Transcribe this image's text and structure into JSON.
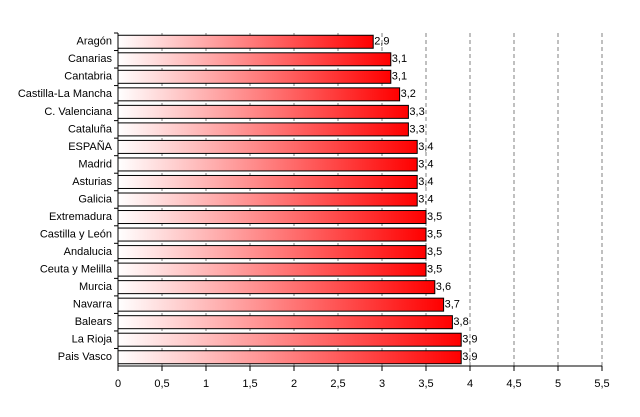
{
  "chart_data": {
    "type": "bar",
    "orientation": "horizontal",
    "categories": [
      "Aragón",
      "Canarias",
      "Cantabria",
      "Castilla-La Mancha",
      "C. Valenciana",
      "Cataluña",
      "ESPAÑA",
      "Madrid",
      "Asturias",
      "Galicia",
      "Extremadura",
      "Castilla y León",
      "Andalucia",
      "Ceuta y Melilla",
      "Murcia",
      "Navarra",
      "Balears",
      "La Rioja",
      "Pais Vasco"
    ],
    "values": [
      2.9,
      3.1,
      3.1,
      3.2,
      3.3,
      3.3,
      3.4,
      3.4,
      3.4,
      3.4,
      3.5,
      3.5,
      3.5,
      3.5,
      3.6,
      3.7,
      3.8,
      3.9,
      3.9
    ],
    "value_labels": [
      "2,9",
      "3,1",
      "3,1",
      "3,2",
      "3,3",
      "3,3",
      "3,4",
      "3,4",
      "3,4",
      "3,4",
      "3,5",
      "3,5",
      "3,5",
      "3,5",
      "3,6",
      "3,7",
      "3,8",
      "3,9",
      "3,9"
    ],
    "color": "#ff0000",
    "xlim": [
      0,
      5.5
    ],
    "xticks": [
      0,
      {
        "value": 0.5,
        "label": "0,5"
      },
      1,
      {
        "value": 1.5,
        "label": "1,5"
      },
      2,
      {
        "value": 2.5,
        "label": "2,5"
      },
      3,
      {
        "value": 3.5,
        "label": "3,5"
      },
      4,
      {
        "value": 4.5,
        "label": "4,5"
      },
      5,
      {
        "value": 5.5,
        "label": "5,5"
      }
    ],
    "grid": true
  }
}
